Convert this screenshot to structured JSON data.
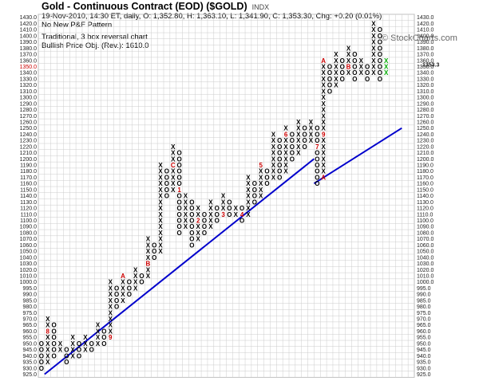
{
  "header": {
    "title": "Gold - Continuous Contract (EOD) ($GOLD)",
    "exchange": "INDX",
    "quote_line": "19-Nov-2010, 14:30 ET, daily, O: 1,352.80, H: 1,363.10, L: 1,341.90, C: 1,353.30, Chg: +0.20 (0.01%)",
    "pattern": "No New P&F Pattern",
    "chart_method": "Traditional, 3 box reversal chart",
    "price_objective": "Bullish Price Obj. (Rev.): 1610.0",
    "brand": "© StockCharts.com"
  },
  "colors": {
    "x_mark": "#000000",
    "o_mark": "#000000",
    "current_column": "#00aa00",
    "month_marker": "#cc0000",
    "trend_line": "#0000cc",
    "grid": "#cccccc",
    "current_price_label": "#cc0000"
  },
  "chart_data": {
    "type": "point-and-figure",
    "box_reversal": 3,
    "price_axis": [
      925,
      930,
      935,
      940,
      945,
      950,
      955,
      960,
      965,
      970,
      975,
      980,
      985,
      990,
      995,
      1000,
      1010,
      1020,
      1030,
      1040,
      1050,
      1060,
      1070,
      1080,
      1090,
      1100,
      1110,
      1120,
      1130,
      1140,
      1150,
      1160,
      1170,
      1180,
      1190,
      1200,
      1210,
      1220,
      1230,
      1240,
      1250,
      1260,
      1270,
      1280,
      1290,
      1300,
      1310,
      1320,
      1330,
      1340,
      1350,
      1360,
      1370,
      1380,
      1390,
      1400,
      1410,
      1420,
      1430
    ],
    "highlighted_price_label": "1350.0",
    "current_price_label": "1353.3",
    "columns": [
      {
        "type": "O",
        "high": 950,
        "low": 930
      },
      {
        "type": "X",
        "high": 970,
        "low": 935,
        "markers": [
          {
            "price": 960,
            "label": "8"
          }
        ]
      },
      {
        "type": "O",
        "high": 965,
        "low": 940
      },
      {
        "type": "X",
        "high": 950,
        "low": 945
      },
      {
        "type": "O",
        "high": 945,
        "low": 935
      },
      {
        "type": "X",
        "high": 955,
        "low": 940
      },
      {
        "type": "O",
        "high": 950,
        "low": 940
      },
      {
        "type": "X",
        "high": 955,
        "low": 945
      },
      {
        "type": "O",
        "high": 950,
        "low": 945
      },
      {
        "type": "X",
        "high": 965,
        "low": 950
      },
      {
        "type": "O",
        "high": 960,
        "low": 950
      },
      {
        "type": "X",
        "high": 1000,
        "low": 955,
        "markers": [
          {
            "price": 955,
            "label": "9"
          }
        ]
      },
      {
        "type": "O",
        "high": 995,
        "low": 980
      },
      {
        "type": "X",
        "high": 1010,
        "low": 985,
        "markers": [
          {
            "price": 1010,
            "label": "A"
          }
        ]
      },
      {
        "type": "O",
        "high": 1000,
        "low": 990
      },
      {
        "type": "X",
        "high": 1020,
        "low": 995
      },
      {
        "type": "O",
        "high": 1010,
        "low": 1000
      },
      {
        "type": "X",
        "high": 1070,
        "low": 1010,
        "markers": [
          {
            "price": 1030,
            "label": "B"
          }
        ]
      },
      {
        "type": "O",
        "high": 1060,
        "low": 1040
      },
      {
        "type": "X",
        "high": 1190,
        "low": 1050
      },
      {
        "type": "O",
        "high": 1180,
        "low": 1140
      },
      {
        "type": "X",
        "high": 1220,
        "low": 1150,
        "markers": [
          {
            "price": 1190,
            "label": "C"
          }
        ]
      },
      {
        "type": "O",
        "high": 1210,
        "low": 1080,
        "markers": [
          {
            "price": 1150,
            "label": "1"
          }
        ]
      },
      {
        "type": "X",
        "high": 1140,
        "low": 1090
      },
      {
        "type": "O",
        "high": 1130,
        "low": 1060
      },
      {
        "type": "X",
        "high": 1120,
        "low": 1070,
        "markers": [
          {
            "price": 1100,
            "label": "2"
          }
        ]
      },
      {
        "type": "O",
        "high": 1110,
        "low": 1080
      },
      {
        "type": "X",
        "high": 1130,
        "low": 1090
      },
      {
        "type": "O",
        "high": 1120,
        "low": 1100
      },
      {
        "type": "X",
        "high": 1140,
        "low": 1110,
        "markers": [
          {
            "price": 1110,
            "label": "3"
          }
        ]
      },
      {
        "type": "O",
        "high": 1130,
        "low": 1110
      },
      {
        "type": "X",
        "high": 1120,
        "low": 1110
      },
      {
        "type": "O",
        "high": 1120,
        "low": 1100,
        "markers": [
          {
            "price": 1110,
            "label": "4"
          }
        ]
      },
      {
        "type": "X",
        "high": 1170,
        "low": 1110
      },
      {
        "type": "O",
        "high": 1160,
        "low": 1130
      },
      {
        "type": "X",
        "high": 1190,
        "low": 1140,
        "markers": [
          {
            "price": 1190,
            "label": "5"
          }
        ]
      },
      {
        "type": "O",
        "high": 1180,
        "low": 1160
      },
      {
        "type": "X",
        "high": 1240,
        "low": 1170
      },
      {
        "type": "O",
        "high": 1230,
        "low": 1170
      },
      {
        "type": "X",
        "high": 1250,
        "low": 1180,
        "markers": [
          {
            "price": 1240,
            "label": "6"
          }
        ]
      },
      {
        "type": "O",
        "high": 1240,
        "low": 1200
      },
      {
        "type": "X",
        "high": 1260,
        "low": 1210
      },
      {
        "type": "O",
        "high": 1250,
        "low": 1220
      },
      {
        "type": "X",
        "high": 1260,
        "low": 1230
      },
      {
        "type": "O",
        "high": 1250,
        "low": 1160,
        "markers": [
          {
            "price": 1220,
            "label": "7"
          }
        ]
      },
      {
        "type": "X",
        "high": 1360,
        "low": 1170,
        "markers": [
          {
            "price": 1170,
            "label": "A"
          },
          {
            "price": 1240,
            "label": "9"
          },
          {
            "price": 1360,
            "label": "A"
          }
        ]
      },
      {
        "type": "O",
        "high": 1350,
        "low": 1310
      },
      {
        "type": "X",
        "high": 1370,
        "low": 1320
      },
      {
        "type": "O",
        "high": 1360,
        "low": 1330
      },
      {
        "type": "X",
        "high": 1380,
        "low": 1340,
        "markers": [
          {
            "price": 1350,
            "label": "B"
          }
        ]
      },
      {
        "type": "O",
        "high": 1370,
        "low": 1330
      },
      {
        "type": "X",
        "high": 1360,
        "low": 1340
      },
      {
        "type": "O",
        "high": 1350,
        "low": 1330
      },
      {
        "type": "X",
        "high": 1420,
        "low": 1340
      },
      {
        "type": "O",
        "high": 1410,
        "low": 1330
      },
      {
        "type": "X",
        "high": 1360,
        "low": 1340,
        "current": true
      }
    ],
    "trend_lines": [
      {
        "from": {
          "column": 1,
          "price": 925
        },
        "to": {
          "column": 44,
          "price": 1200
        }
      },
      {
        "from": {
          "column": 44,
          "price": 1160
        },
        "to": {
          "column": 58,
          "price": 1250
        }
      }
    ]
  }
}
